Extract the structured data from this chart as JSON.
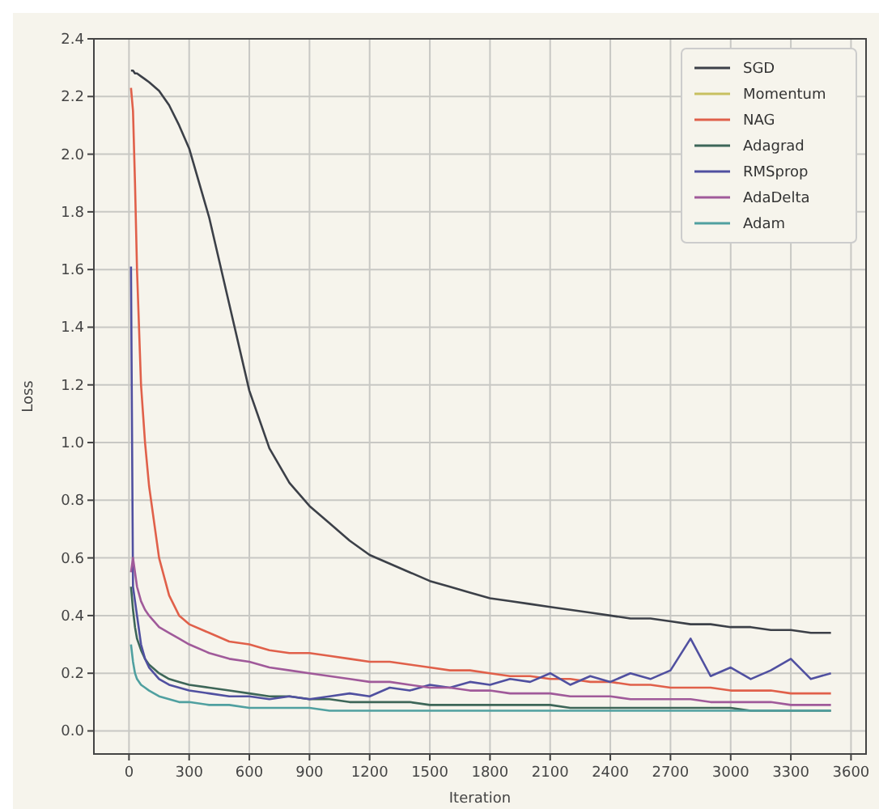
{
  "chart_data": {
    "type": "line",
    "xlabel": "Iteration",
    "ylabel": "Loss",
    "x": [
      10,
      20,
      30,
      40,
      60,
      80,
      100,
      150,
      200,
      250,
      300,
      400,
      500,
      600,
      700,
      800,
      900,
      1000,
      1100,
      1200,
      1300,
      1400,
      1500,
      1600,
      1700,
      1800,
      1900,
      2000,
      2100,
      2200,
      2300,
      2400,
      2500,
      2600,
      2700,
      2800,
      2900,
      3000,
      3100,
      3200,
      3300,
      3400,
      3500
    ],
    "xlim": [
      -175,
      3675
    ],
    "xticks": [
      0,
      300,
      600,
      900,
      1200,
      1500,
      1800,
      2100,
      2400,
      2700,
      3000,
      3300,
      3600
    ],
    "ylim": [
      -0.08,
      2.4
    ],
    "yticks": [
      {
        "value": 0,
        "label": "0.0"
      },
      0.2,
      0.4,
      0.6,
      0.8,
      {
        "value": 1,
        "label": "1.0"
      },
      1.2,
      1.4,
      1.6,
      1.8,
      {
        "value": 2,
        "label": "2.0"
      },
      2.2,
      2.4
    ],
    "grid": true,
    "legend": "top right",
    "line_style": "solid",
    "marker": "none",
    "series": [
      {
        "name": "SGD",
        "color": "#3c4048",
        "values": [
          2.29,
          2.29,
          2.28,
          2.28,
          2.27,
          2.26,
          2.25,
          2.22,
          2.17,
          2.1,
          2.02,
          1.78,
          1.48,
          1.18,
          0.98,
          0.86,
          0.78,
          0.72,
          0.66,
          0.61,
          0.58,
          0.55,
          0.52,
          0.5,
          0.48,
          0.46,
          0.45,
          0.44,
          0.43,
          0.42,
          0.41,
          0.4,
          0.39,
          0.39,
          0.38,
          0.37,
          0.37,
          0.36,
          0.36,
          0.35,
          0.35,
          0.34,
          0.34
        ]
      },
      {
        "name": "Momentum",
        "color": "#c8c060",
        "values": [
          null,
          null,
          null,
          null,
          null,
          null,
          null,
          null,
          null,
          null,
          null,
          null,
          null,
          null,
          null,
          null,
          null,
          null,
          null,
          null,
          null,
          null,
          null,
          null,
          null,
          null,
          null,
          null,
          null,
          null,
          null,
          null,
          null,
          null,
          null,
          null,
          null,
          null,
          null,
          null,
          null,
          null,
          null
        ]
      },
      {
        "name": "NAG",
        "color": "#e0604a",
        "values": [
          2.23,
          2.15,
          1.9,
          1.6,
          1.2,
          1.0,
          0.85,
          0.6,
          0.47,
          0.4,
          0.37,
          0.34,
          0.31,
          0.3,
          0.28,
          0.27,
          0.27,
          0.26,
          0.25,
          0.24,
          0.24,
          0.23,
          0.22,
          0.21,
          0.21,
          0.2,
          0.19,
          0.19,
          0.18,
          0.18,
          0.17,
          0.17,
          0.16,
          0.16,
          0.15,
          0.15,
          0.15,
          0.14,
          0.14,
          0.14,
          0.13,
          0.13,
          0.13
        ]
      },
      {
        "name": "Adagrad",
        "color": "#3d6658",
        "values": [
          0.5,
          0.42,
          0.36,
          0.32,
          0.28,
          0.25,
          0.23,
          0.2,
          0.18,
          0.17,
          0.16,
          0.15,
          0.14,
          0.13,
          0.12,
          0.12,
          0.11,
          0.11,
          0.1,
          0.1,
          0.1,
          0.1,
          0.09,
          0.09,
          0.09,
          0.09,
          0.09,
          0.09,
          0.09,
          0.08,
          0.08,
          0.08,
          0.08,
          0.08,
          0.08,
          0.08,
          0.08,
          0.08,
          0.07,
          0.07,
          0.07,
          0.07,
          0.07
        ]
      },
      {
        "name": "RMSprop",
        "color": "#5050a0",
        "values": [
          1.61,
          0.5,
          0.45,
          0.4,
          0.3,
          0.25,
          0.22,
          0.18,
          0.16,
          0.15,
          0.14,
          0.13,
          0.12,
          0.12,
          0.11,
          0.12,
          0.11,
          0.12,
          0.13,
          0.12,
          0.15,
          0.14,
          0.16,
          0.15,
          0.17,
          0.16,
          0.18,
          0.17,
          0.2,
          0.16,
          0.19,
          0.17,
          0.2,
          0.18,
          0.21,
          0.32,
          0.19,
          0.22,
          0.18,
          0.21,
          0.25,
          0.18,
          0.2
        ]
      },
      {
        "name": "AdaDelta",
        "color": "#a05a9a",
        "values": [
          0.55,
          0.6,
          0.55,
          0.5,
          0.45,
          0.42,
          0.4,
          0.36,
          0.34,
          0.32,
          0.3,
          0.27,
          0.25,
          0.24,
          0.22,
          0.21,
          0.2,
          0.19,
          0.18,
          0.17,
          0.17,
          0.16,
          0.15,
          0.15,
          0.14,
          0.14,
          0.13,
          0.13,
          0.13,
          0.12,
          0.12,
          0.12,
          0.11,
          0.11,
          0.11,
          0.11,
          0.1,
          0.1,
          0.1,
          0.1,
          0.09,
          0.09,
          0.09
        ]
      },
      {
        "name": "Adam",
        "color": "#50a0a0",
        "values": [
          0.3,
          0.24,
          0.2,
          0.18,
          0.16,
          0.15,
          0.14,
          0.12,
          0.11,
          0.1,
          0.1,
          0.09,
          0.09,
          0.08,
          0.08,
          0.08,
          0.08,
          0.07,
          0.07,
          0.07,
          0.07,
          0.07,
          0.07,
          0.07,
          0.07,
          0.07,
          0.07,
          0.07,
          0.07,
          0.07,
          0.07,
          0.07,
          0.07,
          0.07,
          0.07,
          0.07,
          0.07,
          0.07,
          0.07,
          0.07,
          0.07,
          0.07,
          0.07
        ]
      }
    ]
  }
}
